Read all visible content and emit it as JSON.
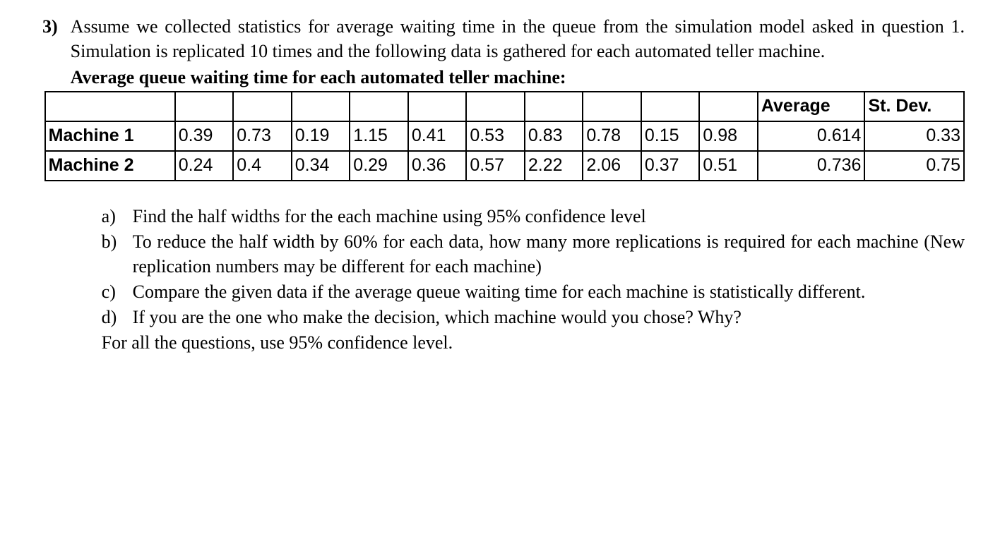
{
  "question_number": "3)",
  "intro": "Assume we collected statistics for average waiting time in the queue from the simulation model asked in question 1. Simulation is replicated 10 times and the following data is gathered for each automated teller machine.",
  "table_title": "Average queue waiting time for each automated teller machine:",
  "table": {
    "type": "table",
    "header_blank_count": 11,
    "columns_tail": [
      "Average",
      "St. Dev."
    ],
    "rows": [
      {
        "label": "Machine 1",
        "values": [
          "0.39",
          "0.73",
          "0.19",
          "1.15",
          "0.41",
          "0.53",
          "0.83",
          "0.78",
          "0.15",
          "0.98"
        ],
        "average": "0.614",
        "std_dev": "0.33"
      },
      {
        "label": "Machine 2",
        "values": [
          "0.24",
          "0.4",
          "0.34",
          "0.29",
          "0.36",
          "0.57",
          "2.22",
          "2.06",
          "0.37",
          "0.51"
        ],
        "average": "0.736",
        "std_dev": "0.75"
      }
    ],
    "border_color": "#000000",
    "background_color": "#ffffff",
    "font_family": "Arial",
    "font_size_pt": 19
  },
  "parts": {
    "a": {
      "label": "a)",
      "text": "Find the half widths for the each machine using 95% confidence level"
    },
    "b": {
      "label": "b)",
      "text": "To reduce the half width by 60% for each data, how many more replications is required for each machine (New replication numbers may be different for each machine)"
    },
    "c": {
      "label": "c)",
      "text": "Compare the given data if the average queue waiting time for each machine is statistically different."
    },
    "d": {
      "label": "d)",
      "text": "If you are the one who make the decision, which machine would you chose? Why?"
    }
  },
  "footer": "For all the questions, use 95% confidence level.",
  "style": {
    "body_font_family": "Times New Roman",
    "body_font_size_pt": 20,
    "text_color": "#000000",
    "background_color": "#ffffff"
  }
}
